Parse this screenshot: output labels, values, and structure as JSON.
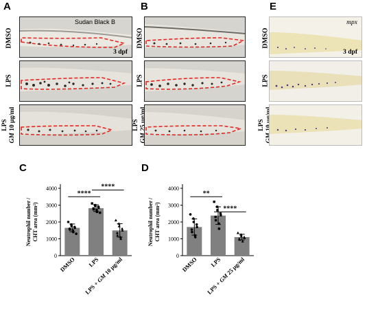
{
  "panels": {
    "A": {
      "letter": "A",
      "stain": "Sudan Black B",
      "stage": "3 dpf",
      "rows": [
        "DMSO",
        "LPS",
        "LPS"
      ],
      "row3_italic": "GM",
      "row3_rest": " 10 μg/ml"
    },
    "B": {
      "letter": "B",
      "rows": [
        "DMSO",
        "LPS",
        "LPS"
      ],
      "row3_italic": "GM",
      "row3_rest": " 25 μg/ml"
    },
    "E": {
      "letter": "E",
      "stain": "mpx",
      "stage": "3 dpf",
      "rows": [
        "DMSO",
        "LPS",
        "LPS"
      ],
      "row3_italic": "GM",
      "row3_rest": " 10 μg/ml"
    },
    "C": {
      "letter": "C"
    },
    "D": {
      "letter": "D"
    }
  },
  "colors": {
    "sbb_bg": "#d7d5cf",
    "mpx_bg": "#ece6c6",
    "dashed_outline": "#e8251f",
    "bar_fill": "#808080"
  },
  "chart_data": [
    {
      "panel": "C",
      "type": "bar",
      "ylabel_line1": "Neutrophil number /",
      "ylabel_line2": "CHT area (mm²)",
      "ylim": [
        0,
        4000
      ],
      "yticks": [
        0,
        1000,
        2000,
        3000,
        4000
      ],
      "categories": [
        "DMSO",
        "LPS",
        "LPS + GM 10 μg/ml"
      ],
      "cat_italic": [
        null,
        null,
        [
          "LPS + ",
          "GM",
          " 10 μg/ml"
        ]
      ],
      "values": [
        1650,
        2820,
        1500
      ],
      "errors": [
        230,
        200,
        400
      ],
      "points": [
        [
          2000,
          1850,
          1750,
          1700,
          1650,
          1600,
          1550,
          1500,
          1400,
          1300
        ],
        [
          3100,
          3000,
          2950,
          2900,
          2850,
          2800,
          2750,
          2700,
          2600,
          2550
        ],
        [
          2100,
          1900,
          1750,
          1600,
          1500,
          1350,
          1200,
          1100,
          1000
        ]
      ],
      "markers": [
        "circle",
        "square",
        "triangle"
      ],
      "significance": [
        {
          "from": 0,
          "to": 1,
          "label": "****",
          "y": 3500
        },
        {
          "from": 1,
          "to": 2,
          "label": "****",
          "y": 3900
        }
      ]
    },
    {
      "panel": "D",
      "type": "bar",
      "ylabel_line1": "Neutrophil number /",
      "ylabel_line2": "CHT area (mm²)",
      "ylim": [
        0,
        4000
      ],
      "yticks": [
        0,
        1000,
        2000,
        3000,
        4000
      ],
      "categories": [
        "DMSO",
        "LPS",
        "LPS + GM 25 μg/ml"
      ],
      "cat_italic": [
        null,
        null,
        [
          "LPS + ",
          "GM",
          " 25 μg/ml"
        ]
      ],
      "values": [
        1700,
        2380,
        1100
      ],
      "errors": [
        480,
        520,
        170
      ],
      "points": [
        [
          2450,
          2200,
          2000,
          1850,
          1700,
          1550,
          1400,
          1200,
          1100
        ],
        [
          3200,
          2900,
          2700,
          2500,
          2400,
          2300,
          2100,
          1900,
          1600
        ],
        [
          1350,
          1250,
          1150,
          1100,
          1050,
          1000,
          950,
          850
        ]
      ],
      "markers": [
        "circle",
        "square",
        "triangle"
      ],
      "significance": [
        {
          "from": 0,
          "to": 1,
          "label": "**",
          "y": 3500
        },
        {
          "from": 1,
          "to": 2,
          "label": "****",
          "y": 2600
        }
      ]
    }
  ]
}
